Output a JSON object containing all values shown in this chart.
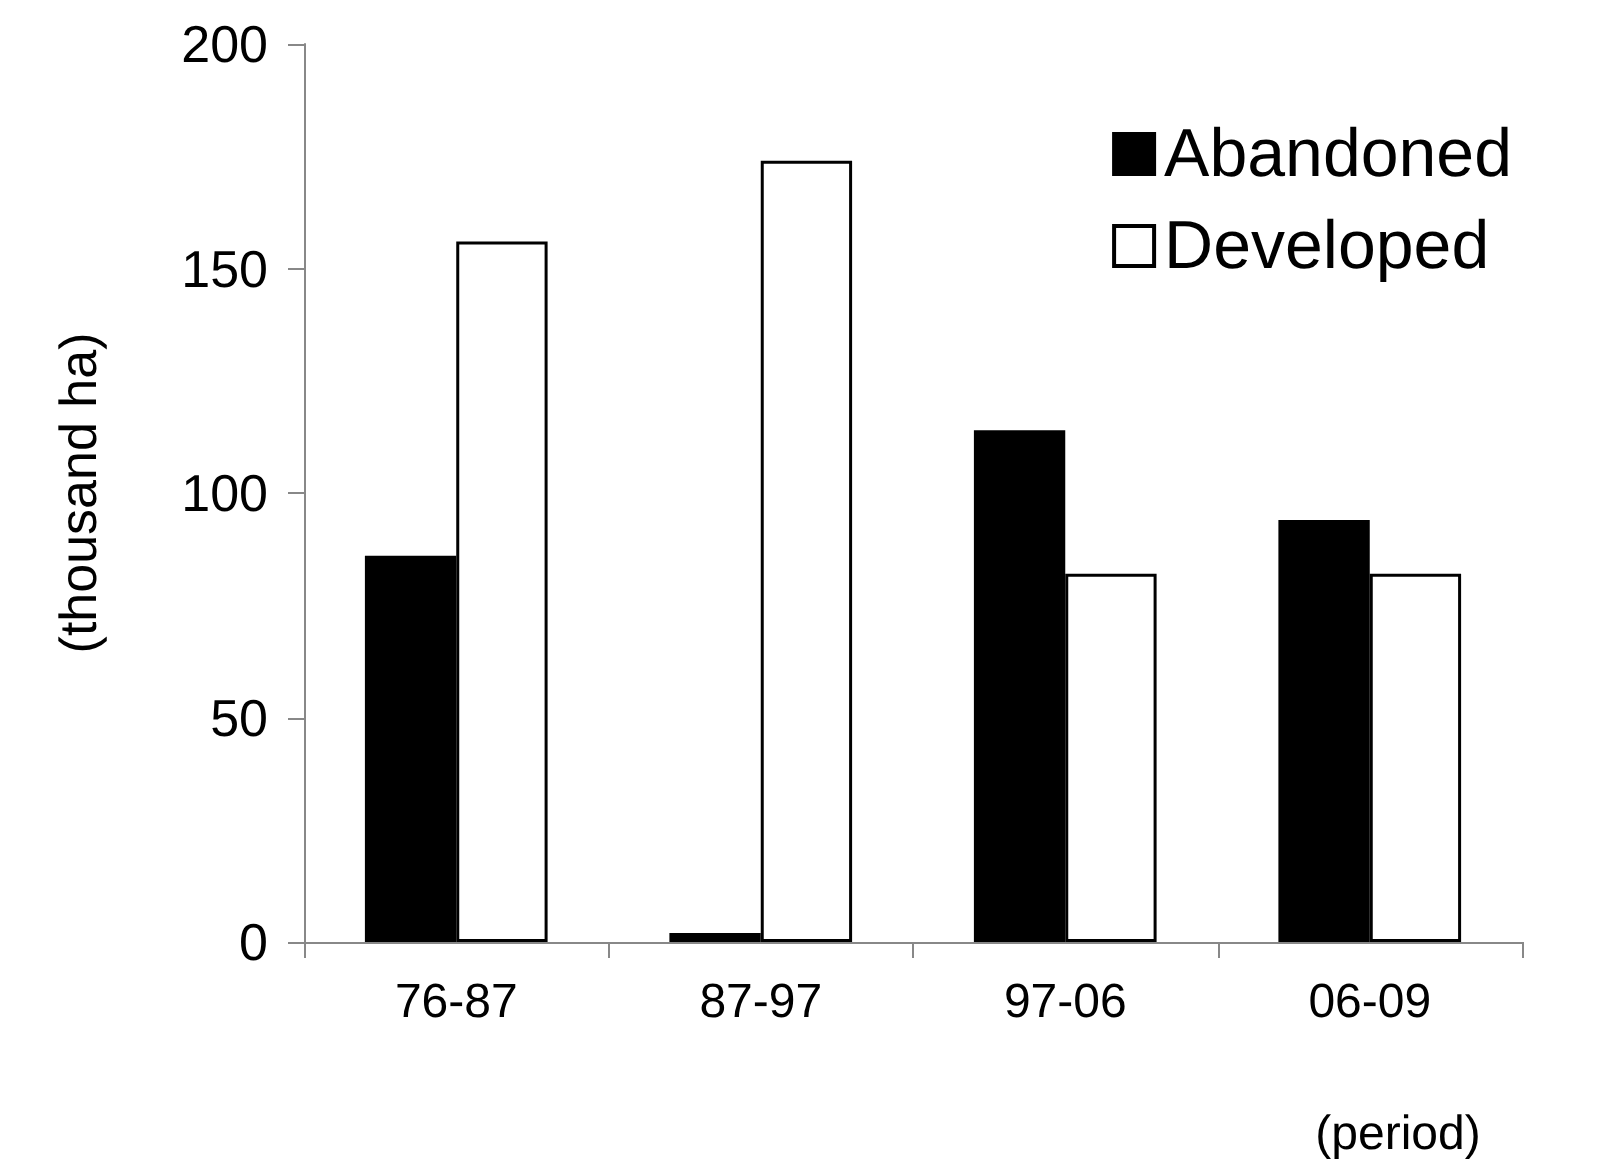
{
  "chart_data": {
    "type": "bar",
    "categories": [
      "76-87",
      "87-97",
      "97-06",
      "06-09"
    ],
    "series": [
      {
        "name": "Abandoned",
        "color": "#000000",
        "values": [
          86,
          2,
          114,
          94
        ]
      },
      {
        "name": "Developed",
        "color": "#ffffff",
        "values": [
          156,
          174,
          82,
          82
        ]
      }
    ],
    "ylabel": "(thousand ha)",
    "xlabel": "(period)",
    "ylim": [
      0,
      200
    ],
    "yticks": [
      0,
      50,
      100,
      150,
      200
    ],
    "grid": false,
    "legend": "top right"
  }
}
